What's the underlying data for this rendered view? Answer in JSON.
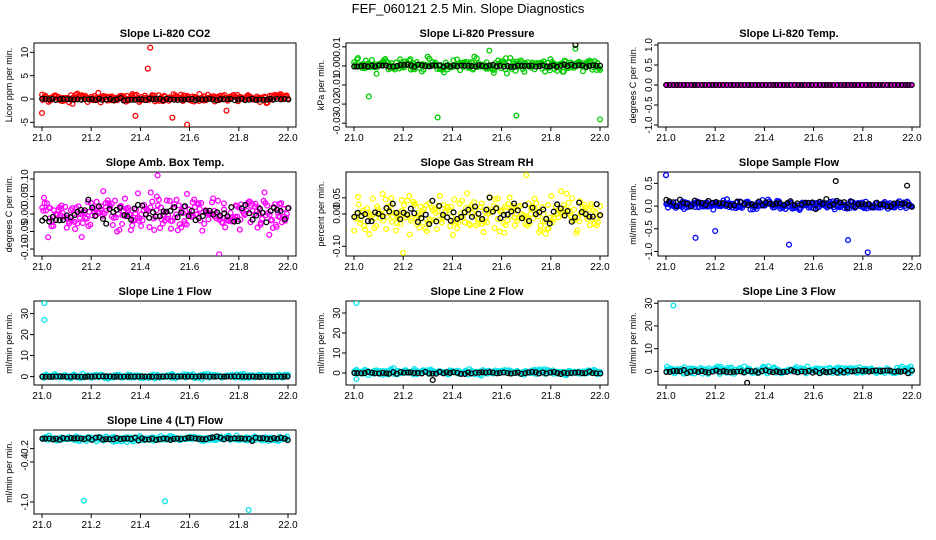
{
  "figure": {
    "title": "FEF_060121  2.5 Min. Slope Diagnostics"
  },
  "chart_data": [
    {
      "type": "scatter",
      "title": "Slope Li-820 CO2",
      "ylabel": "Licor ppm per min.",
      "xlim": [
        21.0,
        22.0
      ],
      "ylim": [
        -6,
        12
      ],
      "xticks": [
        "21.0",
        "21.2",
        "21.4",
        "21.6",
        "21.8",
        "22.0"
      ],
      "yticks": [
        "-5",
        "0",
        "5",
        "10"
      ],
      "ytick_values": [
        -5,
        0,
        5,
        10
      ],
      "series": [
        {
          "color": "#ff0000",
          "spread": 1.4,
          "center": 0.2,
          "outliers": [
            [
              21.44,
              11
            ],
            [
              21.43,
              6.5
            ],
            [
              21.59,
              -5.5
            ],
            [
              21.53,
              -4
            ],
            [
              21.0,
              -3
            ],
            [
              21.75,
              -2.5
            ],
            [
              21.38,
              -3.6
            ]
          ]
        },
        {
          "color": "#000000",
          "spread": 0.35,
          "center": -0.1,
          "outliers": []
        }
      ]
    },
    {
      "type": "scatter",
      "title": "Slope Li-820 Pressure",
      "ylabel": "kPa per min.",
      "xlim": [
        21.0,
        22.0
      ],
      "ylim": [
        -0.032,
        0.012
      ],
      "xticks": [
        "21.0",
        "21.2",
        "21.4",
        "21.6",
        "21.8",
        "22.0"
      ],
      "yticks": [
        "0.01",
        "0.00",
        "-0.01",
        "-0.02",
        "-0.03"
      ],
      "ytick_values": [
        0.01,
        0.0,
        -0.01,
        -0.02,
        -0.03
      ],
      "series": [
        {
          "color": "#00cc00",
          "spread": 0.0055,
          "center": 0.0005,
          "outliers": [
            [
              21.34,
              -0.027
            ],
            [
              21.66,
              -0.026
            ],
            [
              22.0,
              -0.028
            ],
            [
              21.06,
              -0.016
            ],
            [
              21.55,
              0.008
            ],
            [
              21.9,
              0.009
            ]
          ]
        },
        {
          "color": "#000000",
          "spread": 0.001,
          "center": 0.0,
          "outliers": [
            [
              21.9,
              0.011
            ]
          ]
        }
      ]
    },
    {
      "type": "scatter",
      "title": "Slope Li-820 Temp.",
      "ylabel": "degrees C per min.",
      "xlim": [
        21.0,
        22.0
      ],
      "ylim": [
        -1.05,
        1.05
      ],
      "xticks": [
        "21.0",
        "21.2",
        "21.4",
        "21.6",
        "21.8",
        "22.0"
      ],
      "yticks": [
        "-1.0",
        "-0.5",
        "0.0",
        "0.5",
        "1.0"
      ],
      "ytick_values": [
        -1.0,
        -0.5,
        0.0,
        0.5,
        1.0
      ],
      "series": [
        {
          "color": "#ff00ff",
          "spread": 0.0,
          "center": 0.0,
          "outliers": []
        },
        {
          "color": "#000000",
          "spread": 0.0,
          "center": 0.0,
          "outliers": []
        }
      ]
    },
    {
      "type": "scatter",
      "title": "Slope Amb. Box Temp.",
      "ylabel": "degrees C per min.",
      "xlim": [
        21.0,
        22.0
      ],
      "ylim": [
        -0.12,
        0.12
      ],
      "xticks": [
        "21.0",
        "21.2",
        "21.4",
        "21.6",
        "21.8",
        "22.0"
      ],
      "yticks": [
        "-0.10",
        "-0.05",
        "0.00",
        "0.05",
        "0.10"
      ],
      "ytick_values": [
        -0.1,
        -0.05,
        0.0,
        0.05,
        0.1
      ],
      "series": [
        {
          "color": "#ff00ff",
          "spread": 0.09,
          "center": 0.0,
          "outliers": [
            [
              21.72,
              -0.115
            ],
            [
              21.47,
              0.11
            ]
          ]
        },
        {
          "color": "#000000",
          "spread": 0.05,
          "center": 0.0,
          "outliers": []
        }
      ]
    },
    {
      "type": "scatter",
      "title": "Slope Gas Stream RH",
      "ylabel": "percent per min.",
      "xlim": [
        21.0,
        22.0
      ],
      "ylim": [
        -0.13,
        0.13
      ],
      "xticks": [
        "21.0",
        "21.2",
        "21.4",
        "21.6",
        "21.8",
        "22.0"
      ],
      "yticks": [
        "-0.10",
        "0.00",
        "0.05"
      ],
      "ytick_values": [
        -0.1,
        0.0,
        0.05
      ],
      "series": [
        {
          "color": "#ffff00",
          "spread": 0.09,
          "center": 0.0,
          "outliers": [
            [
              21.7,
              0.12
            ],
            [
              21.2,
              -0.12
            ]
          ]
        },
        {
          "color": "#000000",
          "spread": 0.06,
          "center": 0.0,
          "outliers": []
        }
      ]
    },
    {
      "type": "scatter",
      "title": "Slope Sample Flow",
      "ylabel": "ml/min per min.",
      "xlim": [
        21.0,
        22.0
      ],
      "ylim": [
        -1.1,
        0.75
      ],
      "xticks": [
        "21.0",
        "21.2",
        "21.4",
        "21.6",
        "21.8",
        "22.0"
      ],
      "yticks": [
        "-1.0",
        "-0.5",
        "0.0",
        "0.5"
      ],
      "ytick_values": [
        -1.0,
        -0.5,
        0.0,
        0.5
      ],
      "series": [
        {
          "color": "#0000ff",
          "spread": 0.16,
          "center": 0.02,
          "outliers": [
            [
              21.0,
              0.68
            ],
            [
              21.12,
              -0.7
            ],
            [
              21.2,
              -0.55
            ],
            [
              21.5,
              -0.85
            ],
            [
              21.74,
              -0.75
            ],
            [
              21.82,
              -1.02
            ]
          ]
        },
        {
          "color": "#000000",
          "spread": 0.15,
          "center": 0.05,
          "outliers": [
            [
              21.69,
              0.55
            ],
            [
              21.98,
              0.45
            ]
          ]
        }
      ]
    },
    {
      "type": "scatter",
      "title": "Slope Line 1 Flow",
      "ylabel": "ml/min per min.",
      "xlim": [
        21.0,
        22.0
      ],
      "ylim": [
        -4,
        36
      ],
      "xticks": [
        "21.0",
        "21.2",
        "21.4",
        "21.6",
        "21.8",
        "22.0"
      ],
      "yticks": [
        "0",
        "10",
        "20",
        "30"
      ],
      "ytick_values": [
        0,
        10,
        20,
        30
      ],
      "series": [
        {
          "color": "#00e5ee",
          "spread": 1.6,
          "center": 0.2,
          "outliers": [
            [
              21.01,
              35
            ],
            [
              21.01,
              27
            ]
          ]
        },
        {
          "color": "#000000",
          "spread": 0.2,
          "center": 0.0,
          "outliers": []
        }
      ]
    },
    {
      "type": "scatter",
      "title": "Slope Line 2 Flow",
      "ylabel": "ml/min per min.",
      "xlim": [
        21.0,
        22.0
      ],
      "ylim": [
        -6,
        36
      ],
      "xticks": [
        "21.0",
        "21.2",
        "21.4",
        "21.6",
        "21.8",
        "22.0"
      ],
      "yticks": [
        "0",
        "10",
        "20",
        "30"
      ],
      "ytick_values": [
        0,
        10,
        20,
        30
      ],
      "series": [
        {
          "color": "#00e5ee",
          "spread": 2.2,
          "center": 0.5,
          "outliers": [
            [
              21.01,
              35
            ],
            [
              21.01,
              -3
            ]
          ]
        },
        {
          "color": "#000000",
          "spread": 1.0,
          "center": 0.0,
          "outliers": [
            [
              21.32,
              -3.5
            ]
          ]
        }
      ]
    },
    {
      "type": "scatter",
      "title": "Slope Line 3 Flow",
      "ylabel": "ml/min per min.",
      "xlim": [
        21.0,
        22.0
      ],
      "ylim": [
        -6,
        31
      ],
      "xticks": [
        "21.0",
        "21.2",
        "21.4",
        "21.6",
        "21.8",
        "22.0"
      ],
      "yticks": [
        "0",
        "10",
        "20",
        "30"
      ],
      "ytick_values": [
        0,
        10,
        20,
        30
      ],
      "series": [
        {
          "color": "#00e5ee",
          "spread": 2.6,
          "center": 0.5,
          "outliers": [
            [
              21.03,
              29
            ]
          ]
        },
        {
          "color": "#000000",
          "spread": 1.0,
          "center": 0.0,
          "outliers": [
            [
              21.33,
              -5
            ]
          ]
        }
      ]
    },
    {
      "type": "scatter",
      "title": "Slope Line 4 (LT) Flow",
      "ylabel": "ml/min per min.",
      "xlim": [
        21.0,
        22.0
      ],
      "ylim": [
        -1.18,
        0.08
      ],
      "xticks": [
        "21.0",
        "21.2",
        "21.4",
        "21.6",
        "21.8",
        "22.0"
      ],
      "yticks": [
        "-1.0",
        "-0.4",
        "-0.2"
      ],
      "ytick_values": [
        -1.0,
        -0.4,
        -0.2
      ],
      "series": [
        {
          "color": "#00e5ee",
          "spread": 0.06,
          "center": -0.05,
          "outliers": [
            [
              21.17,
              -0.98
            ],
            [
              21.5,
              -0.99
            ],
            [
              21.84,
              -1.12
            ]
          ]
        },
        {
          "color": "#000000",
          "spread": 0.04,
          "center": -0.05,
          "outliers": []
        }
      ]
    }
  ]
}
